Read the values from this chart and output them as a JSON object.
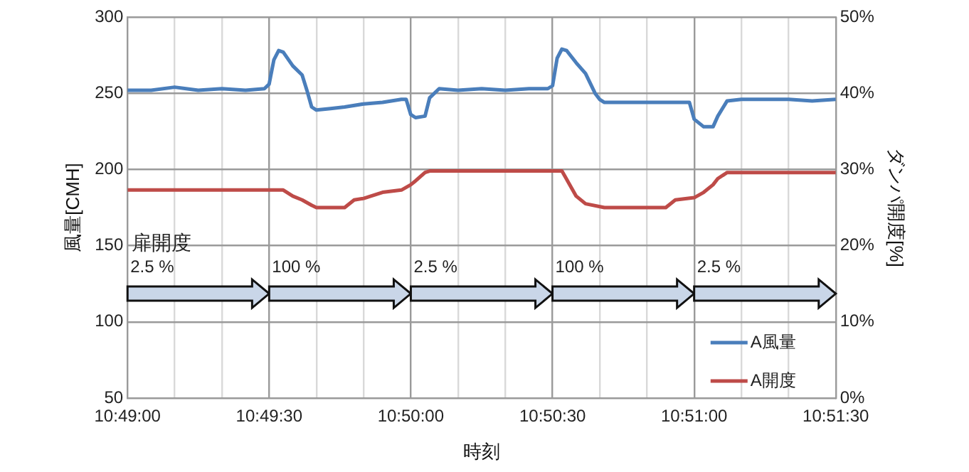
{
  "chart_data": {
    "type": "line",
    "xlabel": "時刻",
    "ylabel": "風量[CMH]",
    "y2label": "ダンパ開度[%]",
    "xlim": [
      10.81667,
      10.85833
    ],
    "xticks": [
      {
        "value": 10.81667,
        "label": "10:49:00"
      },
      {
        "value": 10.81944,
        "label": null
      },
      {
        "value": 10.82222,
        "label": null
      },
      {
        "value": 10.825,
        "label": "10:49:30"
      },
      {
        "value": 10.82778,
        "label": null
      },
      {
        "value": 10.83056,
        "label": null
      },
      {
        "value": 10.83333,
        "label": "10:50:00"
      },
      {
        "value": 10.83611,
        "label": null
      },
      {
        "value": 10.83889,
        "label": null
      },
      {
        "value": 10.84167,
        "label": "10:50:30"
      },
      {
        "value": 10.84444,
        "label": null
      },
      {
        "value": 10.84722,
        "label": null
      },
      {
        "value": 10.85,
        "label": "10:51:00"
      },
      {
        "value": 10.85278,
        "label": null
      },
      {
        "value": 10.85556,
        "label": null
      },
      {
        "value": 10.85833,
        "label": "10:51:30"
      }
    ],
    "ylim": [
      50,
      300
    ],
    "yticks": [
      50,
      100,
      150,
      200,
      250,
      300
    ],
    "y2lim": [
      0,
      50
    ],
    "y2ticks": [
      {
        "value": 0,
        "label": "0%"
      },
      {
        "value": 10,
        "label": "10%"
      },
      {
        "value": 20,
        "label": "20%"
      },
      {
        "value": 30,
        "label": "30%"
      },
      {
        "value": 40,
        "label": "40%"
      },
      {
        "value": 50,
        "label": "50%"
      }
    ],
    "grid": true,
    "legend": "bottom right",
    "marker": "none",
    "line_style": "solid",
    "series": [
      {
        "name": "A風量",
        "color": "#4a7ebb",
        "x": [
          10.81667,
          10.81806,
          10.81944,
          10.82083,
          10.82222,
          10.82361,
          10.82472,
          10.825,
          10.82528,
          10.82556,
          10.82583,
          10.82639,
          10.82694,
          10.82722,
          10.8275,
          10.82778,
          10.82861,
          10.82944,
          10.83056,
          10.83167,
          10.83278,
          10.83306,
          10.83333,
          10.83361,
          10.83417,
          10.83444,
          10.835,
          10.83611,
          10.8375,
          10.83889,
          10.84028,
          10.84139,
          10.84167,
          10.84194,
          10.84222,
          10.8425,
          10.84306,
          10.84361,
          10.84417,
          10.84444,
          10.84472,
          10.84583,
          10.84722,
          10.84833,
          10.84944,
          10.84972,
          10.85,
          10.85056,
          10.85111,
          10.85139,
          10.85194,
          10.85278,
          10.85417,
          10.85556,
          10.85694,
          10.85833
        ],
        "values": [
          252,
          252,
          254,
          252,
          253,
          252,
          253,
          256,
          272,
          278,
          277,
          268,
          262,
          252,
          241,
          239,
          240,
          241,
          243,
          244,
          246,
          246,
          236,
          234,
          235,
          247,
          253,
          252,
          253,
          252,
          253,
          253,
          255,
          273,
          279,
          278,
          270,
          263,
          250,
          246,
          244,
          244,
          244,
          244,
          244,
          244,
          233,
          228,
          228,
          235,
          245,
          246,
          246,
          246,
          245,
          246
        ]
      },
      {
        "name": "A開度",
        "color": "#be4b48",
        "axis": "y2",
        "x": [
          10.81667,
          10.825,
          10.82583,
          10.82639,
          10.82694,
          10.8275,
          10.82778,
          10.82944,
          10.83,
          10.83056,
          10.83167,
          10.83278,
          10.83333,
          10.83361,
          10.83417,
          10.83444,
          10.84167,
          10.84222,
          10.8425,
          10.84306,
          10.84361,
          10.84472,
          10.84833,
          10.84889,
          10.85,
          10.85056,
          10.85111,
          10.85139,
          10.85194,
          10.85833
        ],
        "values": [
          27.3,
          27.3,
          27.3,
          26.5,
          26,
          25.3,
          25,
          25,
          26,
          26.2,
          27,
          27.3,
          28,
          28.5,
          29.6,
          29.8,
          29.8,
          29.8,
          28.7,
          26.5,
          25.5,
          25,
          25,
          26,
          26.3,
          27,
          28,
          28.8,
          29.6,
          29.6
        ]
      }
    ],
    "annotations": [
      "扉開度",
      "2.5 %",
      "100 %",
      "2.5 %",
      "100 %",
      "2.5 %"
    ]
  }
}
